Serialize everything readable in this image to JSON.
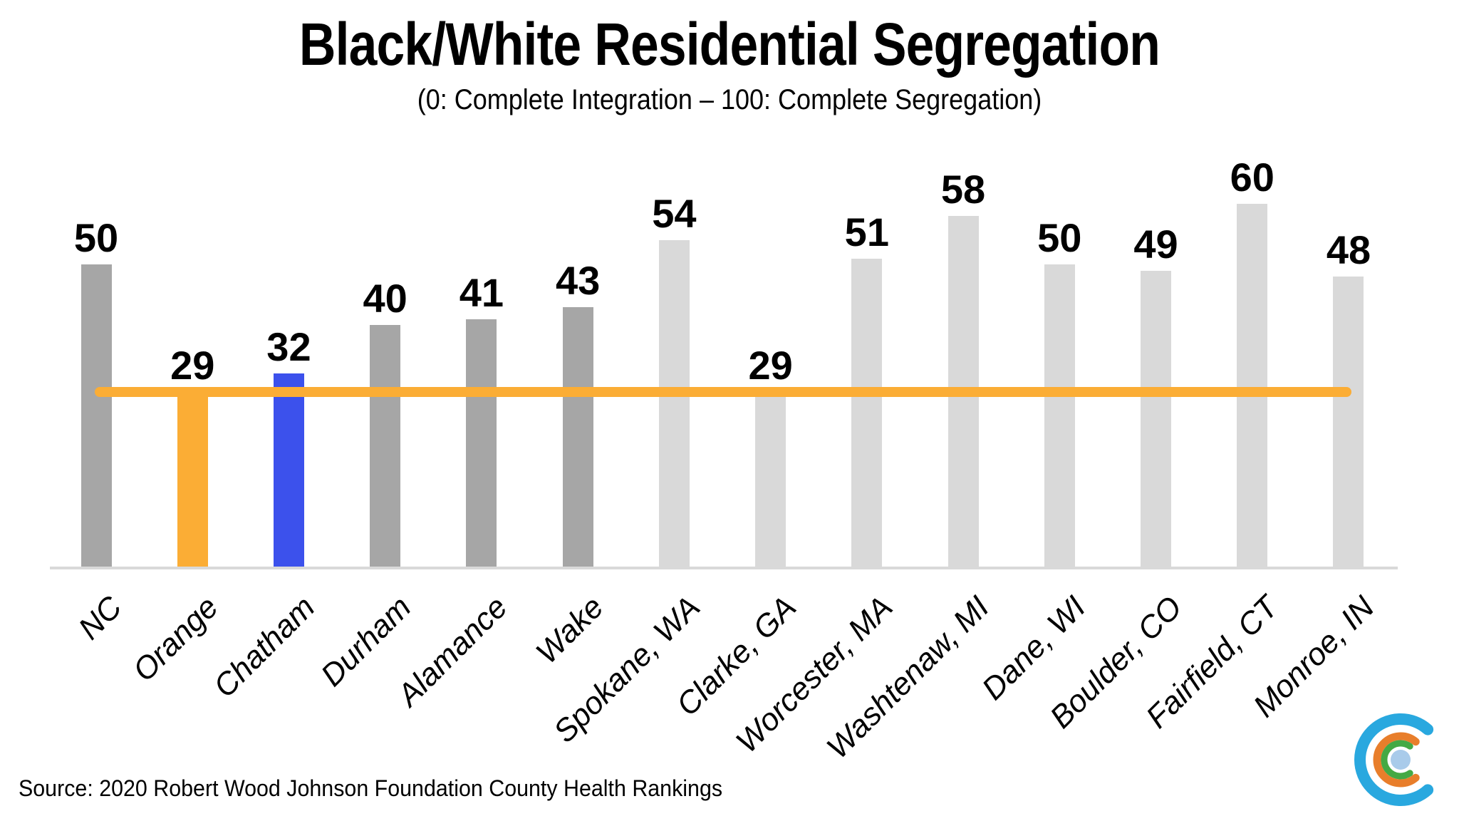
{
  "chart_data": {
    "type": "bar",
    "title": "Black/White Residential Segregation",
    "subtitle": "(0: Complete Integration – 100: Complete Segregation)",
    "categories": [
      "NC",
      "Orange",
      "Chatham",
      "Durham",
      "Alamance",
      "Wake",
      "Spokane, WA",
      "Clarke, GA",
      "Worcester, MA",
      "Washtenaw, MI",
      "Dane, WI",
      "Boulder, CO",
      "Fairfield, CT",
      "Monroe, IN"
    ],
    "values": [
      50,
      29,
      32,
      40,
      41,
      43,
      54,
      29,
      51,
      58,
      50,
      49,
      60,
      48
    ],
    "bar_color_keys": [
      "bar_gray",
      "accent_orange",
      "accent_blue",
      "bar_gray",
      "bar_gray",
      "bar_gray",
      "bar_lightgray",
      "bar_lightgray",
      "bar_lightgray",
      "bar_lightgray",
      "bar_lightgray",
      "bar_lightgray",
      "bar_lightgray",
      "bar_lightgray"
    ],
    "value_labels_shown": true,
    "reference_line": {
      "value": 29,
      "color_key": "accent_orange"
    },
    "ylim": [
      0,
      65
    ],
    "grid": false,
    "legend": false,
    "x_tick_rotation_deg": -45
  },
  "footer": {
    "source": "Source: 2020 Robert Wood Johnson Foundation County Health Rankings"
  },
  "colors": {
    "bar_gray": "#A6A6A6",
    "bar_lightgray": "#D9D9D9",
    "accent_orange": "#FBAD35",
    "accent_blue": "#3C51EC",
    "axis_line": "#D9D9D9",
    "text": "#000000",
    "logo_blue": "#29A8DF",
    "logo_orange": "#E87E2B",
    "logo_green": "#44A944",
    "logo_center": "#A9CBEA"
  }
}
